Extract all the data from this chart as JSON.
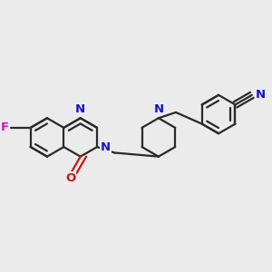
{
  "bg_color": "#ebebeb",
  "bond_color": "#2a2a2a",
  "N_color": "#1414cc",
  "O_color": "#cc1414",
  "F_color": "#cc14cc",
  "lw": 1.6,
  "db_off": 0.018,
  "fs": 9.5,
  "xlim": [
    0.0,
    1.0
  ],
  "ylim": [
    0.22,
    0.82
  ]
}
